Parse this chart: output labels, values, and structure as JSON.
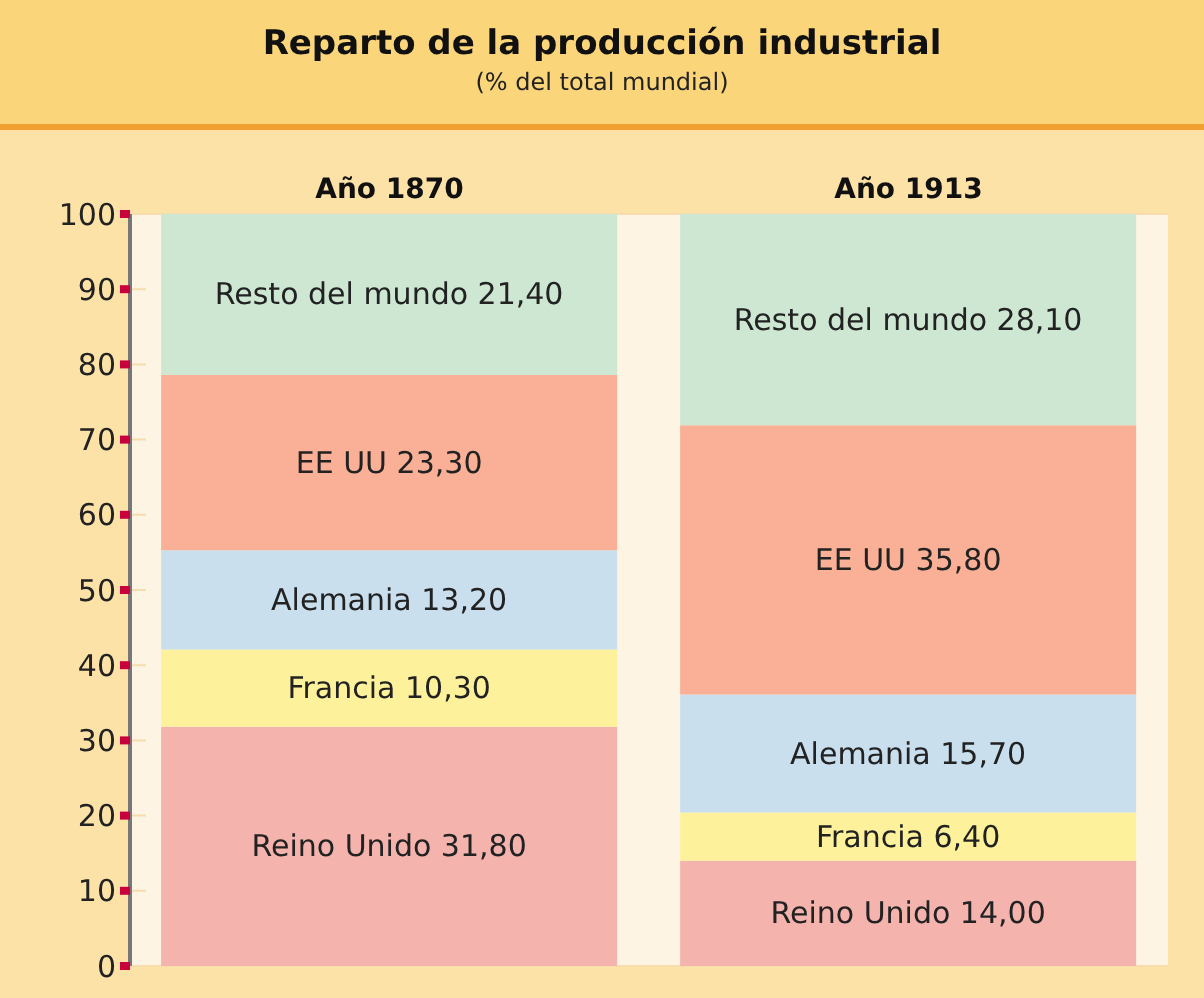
{
  "chart_data": {
    "type": "bar",
    "title": "Reparto de la producción industrial",
    "subtitle": "(% del total mundial)",
    "categories": [
      "Año 1870",
      "Año 1913"
    ],
    "stacked": true,
    "series": [
      {
        "name": "Reino Unido",
        "color": "#f4b3ad",
        "values": [
          31.8,
          14.0
        ],
        "value_labels": [
          "31,80",
          "14,00"
        ]
      },
      {
        "name": "Francia",
        "color": "#fdf29b",
        "values": [
          10.3,
          6.4
        ],
        "value_labels": [
          "10,30",
          "6,40"
        ]
      },
      {
        "name": "Alemania",
        "color": "#c9dfee",
        "values": [
          13.2,
          15.7
        ],
        "value_labels": [
          "13,20",
          "15,70"
        ]
      },
      {
        "name": "EE UU",
        "color": "#f9b096",
        "values": [
          23.3,
          35.8
        ],
        "value_labels": [
          "23,30",
          "35,80"
        ]
      },
      {
        "name": "Resto del mundo",
        "color": "#cde7d3",
        "values": [
          21.4,
          28.1
        ],
        "value_labels": [
          "21,40",
          "28,10"
        ]
      }
    ],
    "ylim": [
      0,
      100
    ],
    "yticks": [
      0,
      10,
      20,
      30,
      40,
      50,
      60,
      70,
      80,
      90,
      100
    ],
    "grid": "y",
    "legend": false
  }
}
